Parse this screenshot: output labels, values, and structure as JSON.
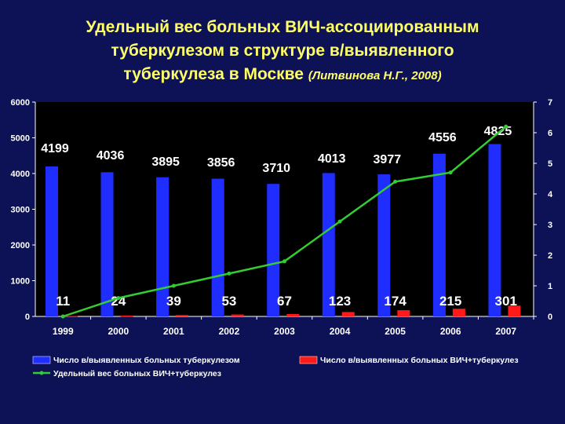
{
  "slide": {
    "title_line1": "Удельный вес больных ВИЧ-ассоциированным",
    "title_line2": "туберкулезом в структуре в/выявленного",
    "title_line3": "туберкулеза в Москве",
    "title_citation": "(Литвинова Н.Г., 2008)"
  },
  "colors": {
    "background": "#0d1257",
    "title": "#ffff66",
    "plot_bg": "#000000",
    "tb_bar": "#1f2dff",
    "hiv_bar": "#ff1a1a",
    "line": "#33cc33",
    "text": "#ffffff"
  },
  "chart_data": {
    "type": "bar",
    "categories": [
      "1999",
      "2000",
      "2001",
      "2002",
      "2003",
      "2004",
      "2005",
      "2006",
      "2007"
    ],
    "series": [
      {
        "name": "Число в/выявленных больных туберкулезом",
        "type": "bar",
        "axis": "left",
        "values": [
          4199,
          4036,
          3895,
          3856,
          3710,
          4013,
          3977,
          4556,
          4825
        ]
      },
      {
        "name": "Число в/выявленных больных ВИЧ+туберкулез",
        "type": "bar",
        "axis": "left",
        "values": [
          11,
          24,
          39,
          53,
          67,
          123,
          174,
          215,
          301
        ]
      },
      {
        "name": "Удельный вес больных ВИЧ+туберкулез",
        "type": "line",
        "axis": "right",
        "values": [
          0.0,
          0.6,
          1.0,
          1.4,
          1.8,
          3.1,
          4.4,
          4.7,
          6.2
        ]
      }
    ],
    "y_left": {
      "ylim": [
        0,
        6000
      ],
      "ticks": [
        "0",
        "1000",
        "2000",
        "3000",
        "4000",
        "5000",
        "6000"
      ]
    },
    "y_right": {
      "ylim": [
        0,
        7
      ],
      "ticks": [
        "0",
        "1",
        "2",
        "3",
        "4",
        "5",
        "6",
        "7"
      ]
    },
    "data_labels_tb": [
      "4199",
      "4036",
      "3895",
      "3856",
      "3710",
      "4013",
      "3977",
      "4556",
      "4825"
    ],
    "data_labels_hiv": [
      "11",
      "24",
      "39",
      "53",
      "67",
      "123",
      "174",
      "215",
      "301"
    ],
    "legend_position": "bottom"
  }
}
